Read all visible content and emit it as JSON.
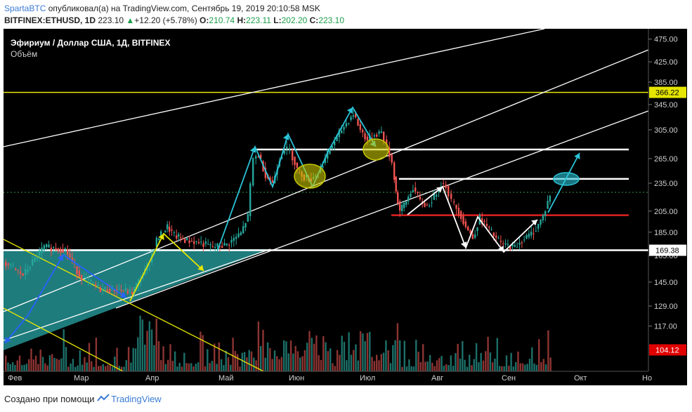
{
  "header": {
    "author": "SpartaBTC",
    "published": "опубликовал(а) на TradingView.com, Сентябрь 19, 2019 20:10:58 MSK",
    "symbol": "BITFINEX:ETHUSD, 1D",
    "last": "223.10",
    "change": "+12.20 (+5.78%)",
    "o_label": "O:",
    "o": "210.74",
    "h_label": "H:",
    "h": "223.11",
    "l_label": "L:",
    "l": "202.20",
    "c_label": "C:",
    "c": "223.10"
  },
  "footer": {
    "created": "Создано при помощи",
    "brand": "TradingView"
  },
  "chart_data": {
    "type": "candlestick",
    "title": "Эфириум / Доллар США, 1Д, BITFINEX",
    "subtitle": "Объём",
    "y_scale": "log",
    "ylim": [
      100,
      490
    ],
    "y_ticks": [
      "475.00",
      "425.00",
      "385.00",
      "345.00",
      "305.00",
      "265.00",
      "235.00",
      "205.00",
      "185.00",
      "165.00",
      "145.00",
      "129.00",
      "117.00"
    ],
    "x_ticks": [
      "Фев",
      "Мар",
      "Апр",
      "Май",
      "Июн",
      "Июл",
      "Авг",
      "Сен",
      "Окт",
      "Но"
    ],
    "price_labels": [
      {
        "value": 366.22,
        "text": "366.22",
        "color": "#e5e500"
      },
      {
        "value": 169.38,
        "text": "169.38",
        "color": "#ffffff"
      },
      {
        "value": 104.12,
        "text": "104.12",
        "color": "#e00000"
      }
    ],
    "horizontal_levels": [
      {
        "value": 366.22,
        "color": "#e5e500"
      },
      {
        "value": 277,
        "color": "#ffffff"
      },
      {
        "value": 240,
        "color": "#ffffff"
      },
      {
        "value": 201,
        "color": "#e02020"
      },
      {
        "value": 169.38,
        "color": "#ffffff"
      }
    ],
    "colors": {
      "up": "#26a69a",
      "down": "#ef5350",
      "channel": "#ffffff",
      "yellow": "#e5e500",
      "cyan": "#2bc4d8",
      "blue": "#2962ff",
      "triangle_fill": "#2aa6a6"
    }
  }
}
